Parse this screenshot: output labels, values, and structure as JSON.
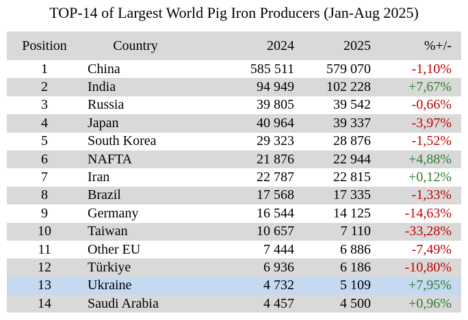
{
  "title": "TOP-14 of Largest World Pig Iron Producers (Jan-Aug 2025)",
  "columns": [
    "Position",
    "Country",
    "2024",
    "2025",
    "%+/-"
  ],
  "colors": {
    "negative": "#c00000",
    "positive": "#2e7d32",
    "shade": "#d9d9d9",
    "highlight": "#c5d9f1"
  },
  "rows": [
    {
      "position": "1",
      "country": "China",
      "y2024": "585 511",
      "y2025": "579 070",
      "change": "-1,10%",
      "trend": "neg",
      "shade": false
    },
    {
      "position": "2",
      "country": "India",
      "y2024": "94 949",
      "y2025": "102 228",
      "change": "+7,67%",
      "trend": "pos",
      "shade": true
    },
    {
      "position": "3",
      "country": "Russia",
      "y2024": "39 805",
      "y2025": "39 542",
      "change": "-0,66%",
      "trend": "neg",
      "shade": false
    },
    {
      "position": "4",
      "country": "Japan",
      "y2024": "40 964",
      "y2025": "39 337",
      "change": "-3,97%",
      "trend": "neg",
      "shade": true
    },
    {
      "position": "5",
      "country": "South Korea",
      "y2024": "29 323",
      "y2025": "28 876",
      "change": "-1,52%",
      "trend": "neg",
      "shade": false
    },
    {
      "position": "6",
      "country": "NAFTA",
      "y2024": "21 876",
      "y2025": "22 944",
      "change": "+4,88%",
      "trend": "pos",
      "shade": true
    },
    {
      "position": "7",
      "country": "Iran",
      "y2024": "22 787",
      "y2025": "22 815",
      "change": "+0,12%",
      "trend": "pos",
      "shade": false
    },
    {
      "position": "8",
      "country": "Brazil",
      "y2024": "17 568",
      "y2025": "17 335",
      "change": "-1,33%",
      "trend": "neg",
      "shade": true
    },
    {
      "position": "9",
      "country": "Germany",
      "y2024": "16 544",
      "y2025": "14 125",
      "change": "-14,63%",
      "trend": "neg",
      "shade": false
    },
    {
      "position": "10",
      "country": "Taiwan",
      "y2024": "10 657",
      "y2025": "7 110",
      "change": "-33,28%",
      "trend": "neg",
      "shade": true
    },
    {
      "position": "11",
      "country": "Other EU",
      "y2024": "7 444",
      "y2025": "6 886",
      "change": "-7,49%",
      "trend": "neg",
      "shade": false
    },
    {
      "position": "12",
      "country": "Türkiye",
      "y2024": "6 936",
      "y2025": "6 186",
      "change": "-10,80%",
      "trend": "neg",
      "shade": true
    },
    {
      "position": "13",
      "country": "Ukraine",
      "y2024": "4 732",
      "y2025": "5 109",
      "change": "+7,95%",
      "trend": "pos",
      "highlight": true
    },
    {
      "position": "14",
      "country": "Saudi Arabia",
      "y2024": "4 457",
      "y2025": "4 500",
      "change": "+0,96%",
      "trend": "pos",
      "shade": true
    }
  ]
}
